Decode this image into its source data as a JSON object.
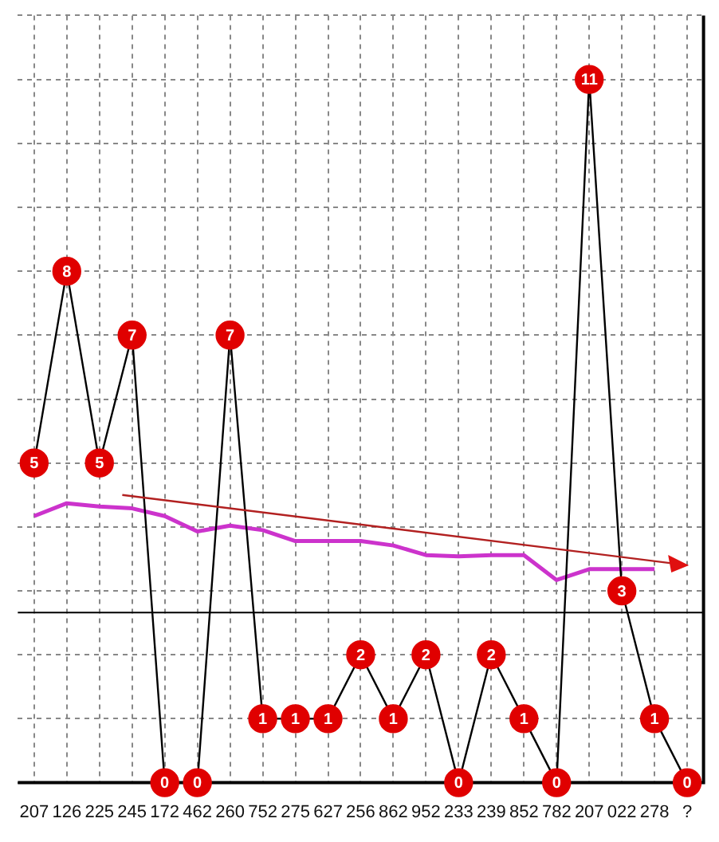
{
  "chart_data": {
    "type": "line",
    "categories": [
      "207",
      "126",
      "225",
      "245",
      "172",
      "462",
      "260",
      "752",
      "275",
      "627",
      "256",
      "862",
      "952",
      "233",
      "239",
      "852",
      "782",
      "207",
      "022",
      "278",
      "?"
    ],
    "series": [
      {
        "color": "#e00000",
        "values": [
          5,
          8,
          5,
          7,
          0,
          0,
          7,
          1,
          1,
          1,
          2,
          1,
          2,
          0,
          2,
          1,
          0,
          11,
          3,
          1,
          0
        ],
        "value_labels": [
          "5",
          "8",
          "5",
          "7",
          "0",
          "0",
          "7",
          "1",
          "1",
          "1",
          "2",
          "1",
          "2",
          "0",
          "2",
          "1",
          "0",
          "11",
          "3",
          "1",
          "0"
        ],
        "marker": "circle"
      },
      {
        "type": "line",
        "color": "#cc33cc",
        "marker": "none",
        "values": [
          4.17,
          4.37,
          4.32,
          4.29,
          4.17,
          3.93,
          4.02,
          3.95,
          3.78,
          3.78,
          3.78,
          3.71,
          3.56,
          3.54,
          3.56,
          3.56,
          3.17,
          3.34,
          3.34,
          3.34,
          null
        ]
      }
    ],
    "ylim": [
      0,
      12
    ],
    "yticks": [
      0,
      1,
      2,
      3,
      4,
      5,
      6,
      7,
      8,
      9,
      10,
      11,
      12
    ],
    "tick_labels": "x",
    "grid": true,
    "legend": false,
    "ref_lines": [
      {
        "axis": "y",
        "value": 2.66,
        "color": "#000000"
      }
    ]
  }
}
